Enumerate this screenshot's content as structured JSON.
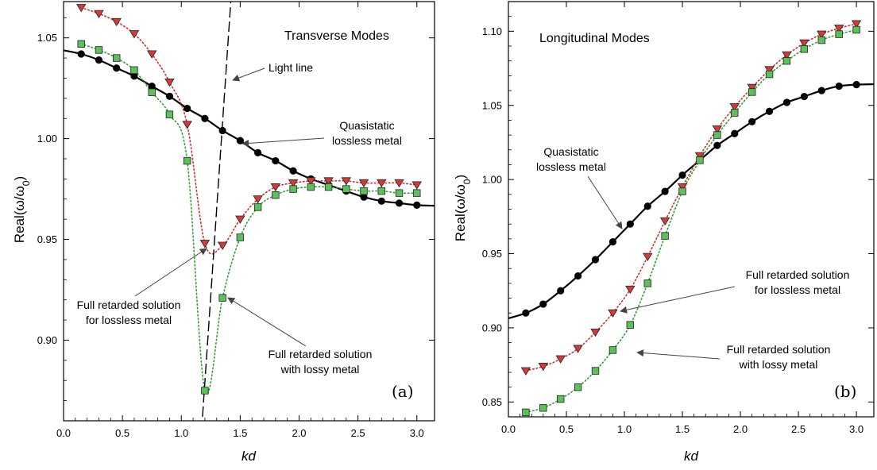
{
  "colors": {
    "quasistatic": "#000000",
    "retarded_lossless": "#d42a2a",
    "retarded_lossy": "#2fa02f",
    "square_fill": "#5cc05c",
    "triangle_fill": "#d43a3a",
    "light_line": "#000000"
  },
  "chart_data": [
    {
      "type": "line",
      "panel_tag": "(a)",
      "title": "Transverse Modes",
      "xlabel": "kd",
      "ylabel": "Real(ω/ω0)",
      "xlim": [
        0.0,
        3.15
      ],
      "ylim": [
        0.86,
        1.068
      ],
      "xticks": [
        "0.0",
        "0.5",
        "1.0",
        "1.5",
        "2.0",
        "2.5",
        "3.0"
      ],
      "yticks": [
        "0.90",
        "0.95",
        "1.00",
        "1.05"
      ],
      "series": [
        {
          "marker": "circle",
          "style": "solid",
          "x": [
            0.15,
            0.3,
            0.45,
            0.6,
            0.75,
            0.9,
            1.05,
            1.2,
            1.35,
            1.5,
            1.65,
            1.8,
            1.95,
            2.1,
            2.25,
            2.4,
            2.55,
            2.7,
            2.85,
            3.0
          ],
          "y": [
            1.042,
            1.039,
            1.035,
            1.031,
            1.026,
            1.021,
            1.015,
            1.01,
            1.004,
            0.999,
            0.993,
            0.989,
            0.984,
            0.98,
            0.977,
            0.974,
            0.971,
            0.969,
            0.968,
            0.967
          ]
        },
        {
          "marker": "triangle",
          "style": "dotted",
          "x": [
            0.15,
            0.3,
            0.45,
            0.6,
            0.75,
            0.9,
            1.05,
            1.2,
            1.35,
            1.5,
            1.65,
            1.8,
            1.95,
            2.1,
            2.25,
            2.4,
            2.55,
            2.7,
            2.85,
            3.0
          ],
          "y": [
            1.065,
            1.062,
            1.058,
            1.052,
            1.042,
            1.028,
            1.007,
            0.948,
            0.947,
            0.96,
            0.97,
            0.976,
            0.978,
            0.979,
            0.979,
            0.979,
            0.978,
            0.978,
            0.978,
            0.977
          ]
        },
        {
          "marker": "square",
          "style": "dotted",
          "x": [
            0.15,
            0.3,
            0.45,
            0.6,
            0.75,
            0.9,
            1.05,
            1.2,
            1.35,
            1.5,
            1.65,
            1.8,
            1.95,
            2.1,
            2.25,
            2.4,
            2.55,
            2.7,
            2.85,
            3.0
          ],
          "y": [
            1.047,
            1.044,
            1.04,
            1.034,
            1.023,
            1.012,
            0.989,
            0.875,
            0.921,
            0.951,
            0.966,
            0.972,
            0.975,
            0.976,
            0.976,
            0.975,
            0.974,
            0.974,
            0.973,
            0.973
          ]
        },
        {
          "style": "dashed",
          "x": [
            1.18,
            1.42
          ],
          "y": [
            0.862,
            1.068
          ]
        }
      ],
      "annotations": [
        {
          "text": "Light line"
        },
        {
          "lines": [
            "Quasistatic",
            "lossless metal"
          ]
        },
        {
          "lines": [
            "Full retarded solution",
            "for lossless metal"
          ]
        },
        {
          "lines": [
            "Full retarded solution",
            "with lossy metal"
          ]
        }
      ]
    },
    {
      "type": "line",
      "panel_tag": "(b)",
      "title": "Longitudinal Modes",
      "xlabel": "kd",
      "ylabel": "Real(ω/ω0)",
      "xlim": [
        0.0,
        3.15
      ],
      "ylim": [
        0.84,
        1.12
      ],
      "xticks": [
        "0.0",
        "0.5",
        "1.0",
        "1.5",
        "2.0",
        "2.5",
        "3.0"
      ],
      "yticks": [
        "0.85",
        "0.90",
        "0.95",
        "1.00",
        "1.05",
        "1.10"
      ],
      "series": [
        {
          "marker": "circle",
          "style": "solid",
          "x": [
            0.15,
            0.3,
            0.45,
            0.6,
            0.75,
            0.9,
            1.05,
            1.2,
            1.35,
            1.5,
            1.65,
            1.8,
            1.95,
            2.1,
            2.25,
            2.4,
            2.55,
            2.7,
            2.85,
            3.0
          ],
          "y": [
            0.91,
            0.916,
            0.925,
            0.935,
            0.946,
            0.958,
            0.97,
            0.982,
            0.992,
            1.003,
            1.013,
            1.023,
            1.031,
            1.039,
            1.046,
            1.052,
            1.056,
            1.06,
            1.063,
            1.064
          ]
        },
        {
          "marker": "triangle",
          "style": "dotted",
          "x": [
            0.15,
            0.3,
            0.45,
            0.6,
            0.75,
            0.9,
            1.05,
            1.2,
            1.35,
            1.5,
            1.65,
            1.8,
            1.95,
            2.1,
            2.25,
            2.4,
            2.55,
            2.7,
            2.85,
            3.0
          ],
          "y": [
            0.871,
            0.874,
            0.879,
            0.886,
            0.897,
            0.91,
            0.926,
            0.948,
            0.972,
            0.995,
            1.016,
            1.034,
            1.049,
            1.062,
            1.074,
            1.084,
            1.092,
            1.098,
            1.102,
            1.105
          ]
        },
        {
          "marker": "square",
          "style": "dotted",
          "x": [
            0.15,
            0.3,
            0.45,
            0.6,
            0.75,
            0.9,
            1.05,
            1.2,
            1.35,
            1.5,
            1.65,
            1.8,
            1.95,
            2.1,
            2.25,
            2.4,
            2.55,
            2.7,
            2.85,
            3.0
          ],
          "y": [
            0.843,
            0.846,
            0.852,
            0.86,
            0.871,
            0.885,
            0.902,
            0.93,
            0.962,
            0.992,
            1.013,
            1.03,
            1.045,
            1.059,
            1.071,
            1.08,
            1.088,
            1.094,
            1.098,
            1.101
          ]
        }
      ],
      "annotations": [
        {
          "lines": [
            "Quasistatic",
            "lossless metal"
          ]
        },
        {
          "lines": [
            "Full retarded solution",
            "for lossless metal"
          ]
        },
        {
          "lines": [
            "Full retarded solution",
            "with lossy metal"
          ]
        }
      ]
    }
  ]
}
